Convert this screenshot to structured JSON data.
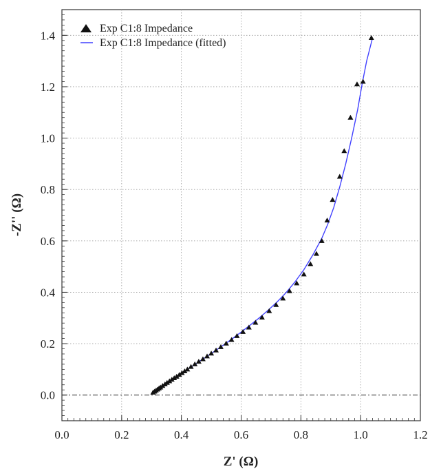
{
  "chart_data": {
    "type": "scatter",
    "xlabel": "Z' (Ω)",
    "ylabel": "-Z'' (Ω)",
    "xlim": [
      0.0,
      1.2
    ],
    "ylim": [
      -0.1,
      1.5
    ],
    "xticks": [
      "0.0",
      "0.2",
      "0.4",
      "0.6",
      "0.8",
      "1.0",
      "1.2"
    ],
    "yticks": [
      "0.0",
      "0.2",
      "0.4",
      "0.6",
      "0.8",
      "1.0",
      "1.2",
      "1.4"
    ],
    "grid": true,
    "legend_position": "top-left",
    "reference_line": {
      "y": 0.0,
      "style": "dash-dot",
      "color": "#333333"
    },
    "series": [
      {
        "name": "Exp C1:8 Impedance",
        "style": "markers",
        "marker": "triangle",
        "color": "#111111",
        "x": [
          0.305,
          0.31,
          0.315,
          0.32,
          0.325,
          0.33,
          0.337,
          0.345,
          0.352,
          0.36,
          0.368,
          0.376,
          0.384,
          0.393,
          0.402,
          0.411,
          0.42,
          0.432,
          0.445,
          0.458,
          0.472,
          0.486,
          0.5,
          0.516,
          0.532,
          0.55,
          0.568,
          0.586,
          0.606,
          0.626,
          0.648,
          0.67,
          0.694,
          0.717,
          0.74,
          0.762,
          0.786,
          0.81,
          0.832,
          0.852,
          0.87,
          0.888,
          0.906,
          0.93,
          0.945,
          0.966,
          0.988,
          1.008,
          1.036
        ],
        "y": [
          0.01,
          0.014,
          0.018,
          0.022,
          0.026,
          0.03,
          0.036,
          0.042,
          0.048,
          0.054,
          0.06,
          0.066,
          0.072,
          0.079,
          0.086,
          0.093,
          0.1,
          0.11,
          0.12,
          0.13,
          0.14,
          0.151,
          0.162,
          0.174,
          0.187,
          0.201,
          0.215,
          0.23,
          0.246,
          0.263,
          0.282,
          0.302,
          0.327,
          0.351,
          0.376,
          0.405,
          0.435,
          0.47,
          0.51,
          0.55,
          0.6,
          0.68,
          0.76,
          0.85,
          0.95,
          1.08,
          1.21,
          1.22,
          1.39
        ]
      },
      {
        "name": "Exp C1:8 Impedance (fitted)",
        "style": "line",
        "color": "#4040ff",
        "x": [
          0.302,
          0.32,
          0.34,
          0.36,
          0.38,
          0.4,
          0.42,
          0.45,
          0.48,
          0.51,
          0.54,
          0.57,
          0.6,
          0.63,
          0.66,
          0.69,
          0.72,
          0.75,
          0.78,
          0.81,
          0.84,
          0.87,
          0.89,
          0.91,
          0.93,
          0.95,
          0.97,
          0.99,
          1.005,
          1.02,
          1.04
        ],
        "y": [
          0.005,
          0.022,
          0.04,
          0.055,
          0.07,
          0.085,
          0.1,
          0.123,
          0.146,
          0.17,
          0.194,
          0.219,
          0.245,
          0.272,
          0.3,
          0.33,
          0.362,
          0.398,
          0.44,
          0.488,
          0.545,
          0.61,
          0.665,
          0.73,
          0.81,
          0.9,
          1.0,
          1.11,
          1.21,
          1.3,
          1.39
        ]
      }
    ]
  }
}
